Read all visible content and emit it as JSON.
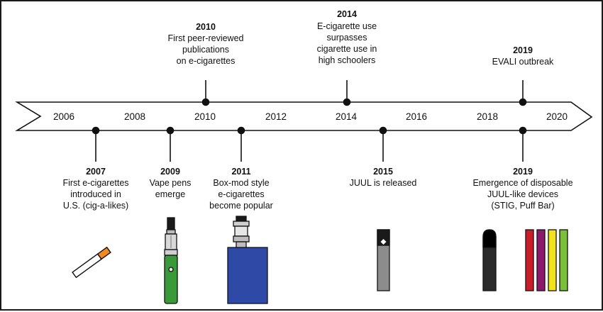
{
  "axis_years": [
    "2006",
    "2008",
    "2010",
    "2012",
    "2014",
    "2016",
    "2018",
    "2020"
  ],
  "events_above": [
    {
      "id": "2010",
      "year": "2010",
      "lines": [
        "First peer-reviewed",
        "publications",
        "on e-cigarettes"
      ]
    },
    {
      "id": "2014",
      "year": "2014",
      "lines": [
        "E-cigarette use",
        "surpasses",
        "cigarette use in",
        "high schoolers"
      ]
    },
    {
      "id": "2019-evali",
      "year": "2019",
      "lines": [
        "EVALI outbreak"
      ]
    }
  ],
  "events_below": [
    {
      "id": "2007",
      "year": "2007",
      "lines": [
        "First e-cigarettes",
        "introduced in",
        "U.S. (cig-a-likes)"
      ]
    },
    {
      "id": "2009",
      "year": "2009",
      "lines": [
        "Vape pens",
        "emerge"
      ]
    },
    {
      "id": "2011",
      "year": "2011",
      "lines": [
        "Box-mod style",
        "e-cigarettes",
        "become popular"
      ]
    },
    {
      "id": "2015",
      "year": "2015",
      "lines": [
        "JUUL is released"
      ]
    },
    {
      "id": "2019-disposable",
      "year": "2019",
      "lines": [
        "Emergence of disposable",
        "JUUL-like devices",
        "(STIG, Puff Bar)"
      ]
    }
  ],
  "device_icons": [
    "cig-a-like-icon",
    "vape-pen-icon",
    "box-mod-icon",
    "juul-icon",
    "disposable-pod-icon",
    "puff-bar-icons"
  ],
  "colors": {
    "line": "#111111",
    "cig_filter": "#f28a1e",
    "vape_pen_green": "#3a9a3a",
    "box_mod_blue": "#2f4aa6",
    "juul_gray": "#8c8c8c",
    "puff_bar_colors": [
      "#c81e2c",
      "#8b1a6b",
      "#f2e21c",
      "#7bbf3a"
    ]
  }
}
